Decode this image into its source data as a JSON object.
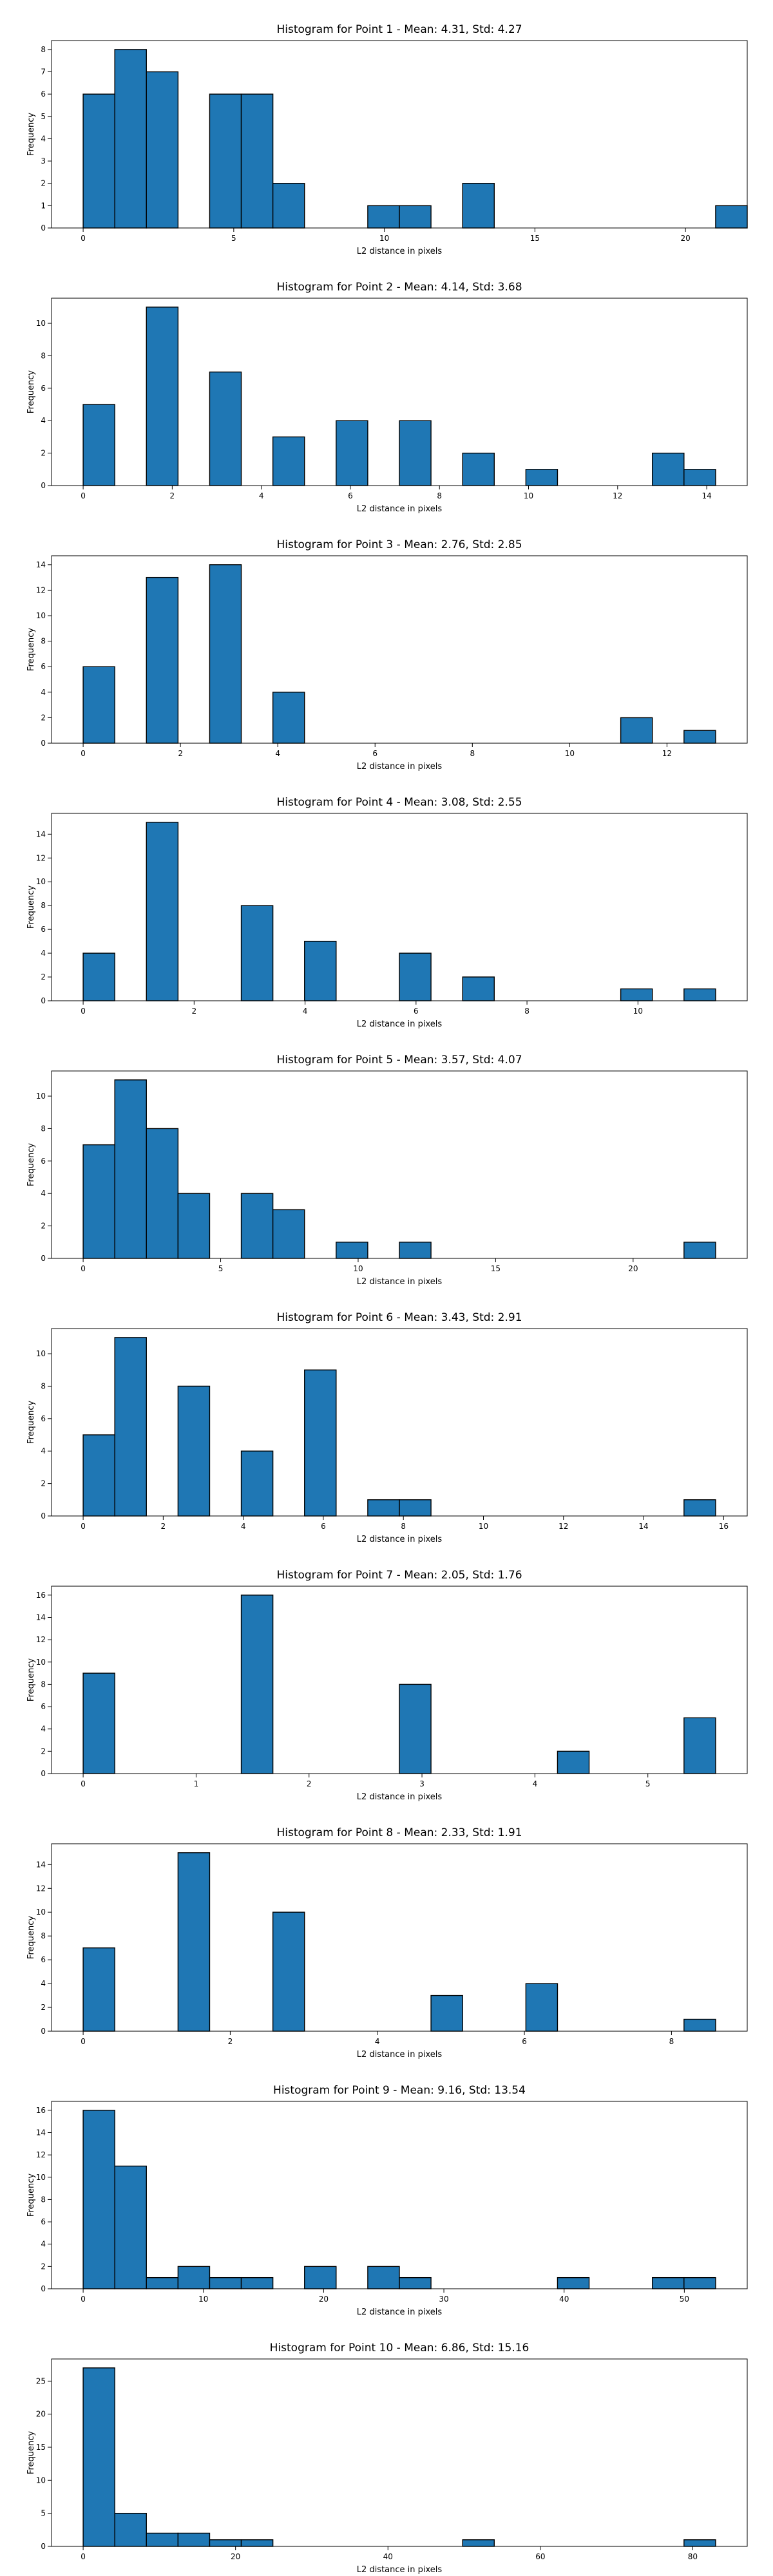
{
  "chart_data": [
    {
      "type": "bar",
      "title": "Histogram for Point 1 - Mean: 4.31, Std: 4.27",
      "xlabel": "L2 distance in pixels",
      "ylabel": "Frequency",
      "xlim": [
        -1.05,
        22.05
      ],
      "ylim": [
        0,
        8.4
      ],
      "xticks": [
        0,
        5,
        10,
        15,
        20
      ],
      "yticks": [
        0,
        1,
        2,
        3,
        4,
        5,
        6,
        7,
        8
      ],
      "bin_start": 0,
      "bin_width": 1.05,
      "values": [
        6,
        8,
        7,
        0,
        6,
        6,
        2,
        0,
        0,
        1,
        1,
        0,
        2,
        0,
        0,
        0,
        0,
        0,
        0,
        0,
        1
      ]
    },
    {
      "type": "bar",
      "title": "Histogram for Point 2 - Mean: 4.14, Std: 3.68",
      "xlabel": "L2 distance in pixels",
      "ylabel": "Frequency",
      "xlim": [
        -0.71,
        14.91
      ],
      "ylim": [
        0,
        11.55
      ],
      "xticks": [
        0,
        2,
        4,
        6,
        8,
        10,
        12,
        14
      ],
      "yticks": [
        0,
        2,
        4,
        6,
        8,
        10
      ],
      "bin_start": 0,
      "bin_width": 0.71,
      "values": [
        5,
        0,
        11,
        0,
        7,
        0,
        3,
        0,
        4,
        0,
        4,
        0,
        2,
        0,
        1,
        0,
        0,
        0,
        2,
        1
      ]
    },
    {
      "type": "bar",
      "title": "Histogram for Point 3 - Mean: 2.76, Std: 2.85",
      "xlabel": "L2 distance in pixels",
      "ylabel": "Frequency",
      "xlim": [
        -0.65,
        13.65
      ],
      "ylim": [
        0,
        14.7
      ],
      "xticks": [
        0,
        2,
        4,
        6,
        8,
        10,
        12
      ],
      "yticks": [
        0,
        2,
        4,
        6,
        8,
        10,
        12,
        14
      ],
      "bin_start": 0,
      "bin_width": 0.65,
      "values": [
        6,
        0,
        13,
        0,
        14,
        0,
        4,
        0,
        0,
        0,
        0,
        0,
        0,
        0,
        0,
        0,
        0,
        2,
        0,
        1
      ]
    },
    {
      "type": "bar",
      "title": "Histogram for Point 4 - Mean: 3.08, Std: 2.55",
      "xlabel": "L2 distance in pixels",
      "ylabel": "Frequency",
      "xlim": [
        -0.57,
        11.97
      ],
      "ylim": [
        0,
        15.75
      ],
      "xticks": [
        0,
        2,
        4,
        6,
        8,
        10
      ],
      "yticks": [
        0,
        2,
        4,
        6,
        8,
        10,
        12,
        14
      ],
      "bin_start": 0,
      "bin_width": 0.57,
      "values": [
        4,
        0,
        15,
        0,
        0,
        8,
        0,
        5,
        0,
        0,
        4,
        0,
        2,
        0,
        0,
        0,
        0,
        1,
        0,
        1
      ]
    },
    {
      "type": "bar",
      "title": "Histogram for Point 5 - Mean: 3.57, Std: 4.07",
      "xlabel": "L2 distance in pixels",
      "ylabel": "Frequency",
      "xlim": [
        -1.15,
        24.15
      ],
      "ylim": [
        0,
        11.55
      ],
      "xticks": [
        0,
        5,
        10,
        15,
        20
      ],
      "yticks": [
        0,
        2,
        4,
        6,
        8,
        10
      ],
      "bin_start": 0,
      "bin_width": 1.15,
      "values": [
        7,
        11,
        8,
        4,
        0,
        4,
        3,
        0,
        1,
        0,
        1,
        0,
        0,
        0,
        0,
        0,
        0,
        0,
        0,
        1
      ]
    },
    {
      "type": "bar",
      "title": "Histogram for Point 6 - Mean: 3.43, Std: 2.91",
      "xlabel": "L2 distance in pixels",
      "ylabel": "Frequency",
      "xlim": [
        -0.79,
        16.59
      ],
      "ylim": [
        0,
        11.55
      ],
      "xticks": [
        0,
        2,
        4,
        6,
        8,
        10,
        12,
        14,
        16
      ],
      "yticks": [
        0,
        2,
        4,
        6,
        8,
        10
      ],
      "bin_start": 0,
      "bin_width": 0.79,
      "values": [
        5,
        11,
        0,
        8,
        0,
        4,
        0,
        9,
        0,
        1,
        1,
        0,
        0,
        0,
        0,
        0,
        0,
        0,
        0,
        1
      ]
    },
    {
      "type": "bar",
      "title": "Histogram for Point 7 - Mean: 2.05, Std: 1.76",
      "xlabel": "L2 distance in pixels",
      "ylabel": "Frequency",
      "xlim": [
        -0.28,
        5.88
      ],
      "ylim": [
        0,
        16.8
      ],
      "xticks": [
        0,
        1,
        2,
        3,
        4,
        5
      ],
      "yticks": [
        0,
        2,
        4,
        6,
        8,
        10,
        12,
        14,
        16
      ],
      "bin_start": 0,
      "bin_width": 0.28,
      "values": [
        9,
        0,
        0,
        0,
        0,
        16,
        0,
        0,
        0,
        0,
        8,
        0,
        0,
        0,
        0,
        2,
        0,
        0,
        0,
        5
      ]
    },
    {
      "type": "bar",
      "title": "Histogram for Point 8 - Mean: 2.33, Std: 1.91",
      "xlabel": "L2 distance in pixels",
      "ylabel": "Frequency",
      "xlim": [
        -0.43,
        9.03
      ],
      "ylim": [
        0,
        15.75
      ],
      "xticks": [
        0,
        2,
        4,
        6,
        8
      ],
      "yticks": [
        0,
        2,
        4,
        6,
        8,
        10,
        12,
        14
      ],
      "bin_start": 0,
      "bin_width": 0.43,
      "values": [
        7,
        0,
        0,
        15,
        0,
        0,
        10,
        0,
        0,
        0,
        0,
        3,
        0,
        0,
        4,
        0,
        0,
        0,
        0,
        1
      ]
    },
    {
      "type": "bar",
      "title": "Histogram for Point 9 - Mean: 9.16, Std: 13.54",
      "xlabel": "L2 distance in pixels",
      "ylabel": "Frequency",
      "xlim": [
        -2.63,
        55.23
      ],
      "ylim": [
        0,
        16.8
      ],
      "xticks": [
        0,
        10,
        20,
        30,
        40,
        50
      ],
      "yticks": [
        0,
        2,
        4,
        6,
        8,
        10,
        12,
        14,
        16
      ],
      "bin_start": 0,
      "bin_width": 2.63,
      "values": [
        16,
        11,
        1,
        2,
        1,
        1,
        0,
        2,
        0,
        2,
        1,
        0,
        0,
        0,
        0,
        1,
        0,
        0,
        1,
        1
      ]
    },
    {
      "type": "bar",
      "title": "Histogram for Point 10 - Mean: 6.86, Std: 15.16",
      "xlabel": "L2 distance in pixels",
      "ylabel": "Frequency",
      "xlim": [
        -4.15,
        87.15
      ],
      "ylim": [
        0,
        28.35
      ],
      "xticks": [
        0,
        20,
        40,
        60,
        80
      ],
      "yticks": [
        0,
        5,
        10,
        15,
        20,
        25
      ],
      "bin_start": 0,
      "bin_width": 4.15,
      "values": [
        27,
        5,
        2,
        2,
        1,
        1,
        0,
        0,
        0,
        0,
        0,
        0,
        1,
        0,
        0,
        0,
        0,
        0,
        0,
        1
      ]
    }
  ]
}
